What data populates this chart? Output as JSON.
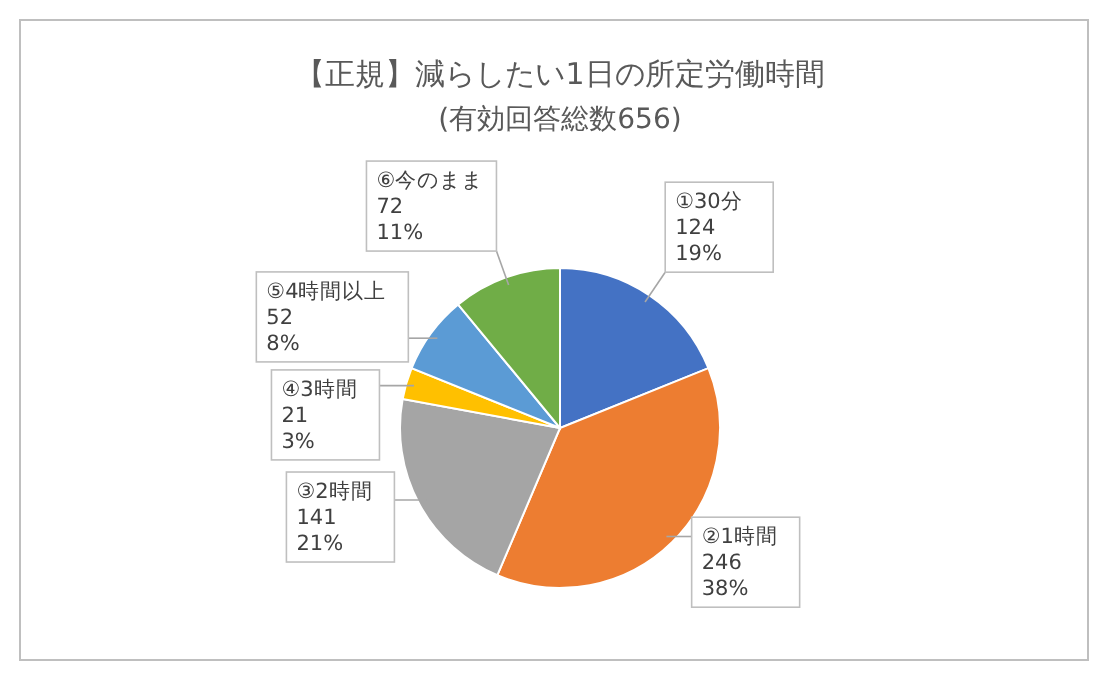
{
  "chart_data": {
    "type": "pie",
    "title": "【正規】減らしたい1日の所定労働時間",
    "subtitle": "(有効回答総数656)",
    "categories": [
      "①30分",
      "②1時間",
      "③2時間",
      "④3時間",
      "⑤4時間以上",
      "⑥今のまま"
    ],
    "values": [
      124,
      246,
      141,
      21,
      52,
      72
    ],
    "colors": [
      "#4472c4",
      "#ed7d31",
      "#a5a5a5",
      "#ffc000",
      "#5b9bd5",
      "#70ad47"
    ],
    "value_labels": [
      "124\n19%",
      "246\n38%",
      "141\n21%",
      "21\n3%",
      "52\n8%",
      "72\n11%"
    ],
    "legend": false
  }
}
